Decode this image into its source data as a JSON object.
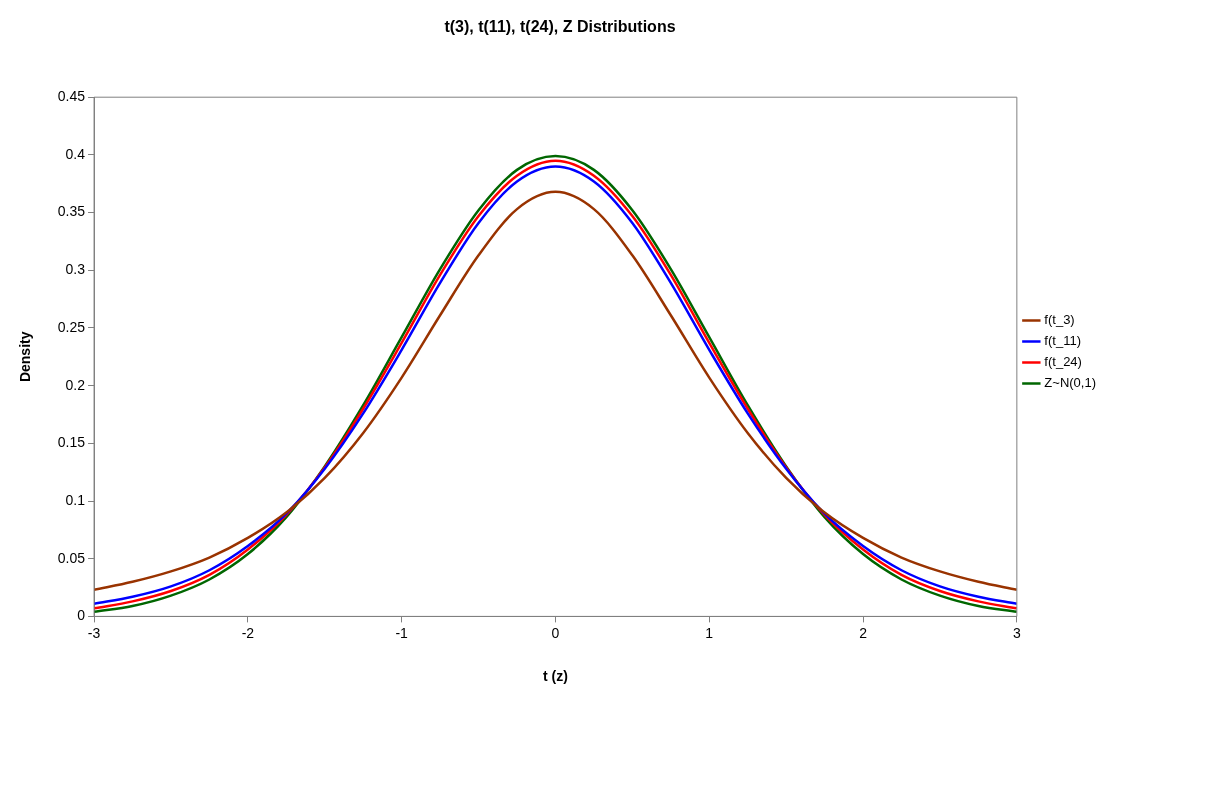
{
  "chart_data": {
    "type": "line",
    "title": "t(3), t(11), t(24), Z Distributions",
    "xlabel": "t (z)",
    "ylabel": "Density",
    "x": [
      -3,
      -2.75,
      -2.5,
      -2.25,
      -2,
      -1.75,
      -1.5,
      -1.25,
      -1,
      -0.75,
      -0.5,
      -0.25,
      0,
      0.25,
      0.5,
      0.75,
      1,
      1.25,
      1.5,
      1.75,
      2,
      2.25,
      2.5,
      2.75,
      3
    ],
    "series": [
      {
        "name": "f(t_3)",
        "color": "#993300",
        "values": [
          0.023,
          0.03,
          0.039,
          0.051,
          0.068,
          0.09,
          0.12,
          0.159,
          0.207,
          0.261,
          0.313,
          0.353,
          0.368,
          0.353,
          0.313,
          0.261,
          0.207,
          0.159,
          0.12,
          0.09,
          0.068,
          0.051,
          0.039,
          0.03,
          0.023
        ]
      },
      {
        "name": "f(t_11)",
        "color": "#0000ff",
        "values": [
          0.011,
          0.017,
          0.026,
          0.04,
          0.061,
          0.089,
          0.128,
          0.176,
          0.231,
          0.289,
          0.341,
          0.377,
          0.39,
          0.377,
          0.341,
          0.289,
          0.231,
          0.176,
          0.128,
          0.089,
          0.061,
          0.04,
          0.026,
          0.017,
          0.011
        ]
      },
      {
        "name": "f(t_24)",
        "color": "#ff0000",
        "values": [
          0.007,
          0.013,
          0.022,
          0.036,
          0.058,
          0.088,
          0.129,
          0.18,
          0.237,
          0.296,
          0.347,
          0.382,
          0.395,
          0.382,
          0.347,
          0.296,
          0.237,
          0.18,
          0.129,
          0.088,
          0.058,
          0.036,
          0.022,
          0.013,
          0.007
        ]
      },
      {
        "name": "Z~N(0,1)",
        "color": "#006600",
        "values": [
          0.004,
          0.009,
          0.018,
          0.032,
          0.054,
          0.086,
          0.13,
          0.183,
          0.242,
          0.301,
          0.352,
          0.387,
          0.399,
          0.387,
          0.352,
          0.301,
          0.242,
          0.183,
          0.13,
          0.086,
          0.054,
          0.032,
          0.018,
          0.009,
          0.004
        ]
      }
    ],
    "xlim": [
      -3,
      3
    ],
    "xticks": [
      -3,
      -2,
      -1,
      0,
      1,
      2,
      3
    ],
    "ylim": [
      0,
      0.45
    ],
    "yticks": [
      0,
      0.05,
      0.1,
      0.15,
      0.2,
      0.25,
      0.3,
      0.35,
      0.4,
      0.45
    ],
    "grid": false,
    "legend": "right",
    "marker": "none",
    "line_style": "solid"
  }
}
